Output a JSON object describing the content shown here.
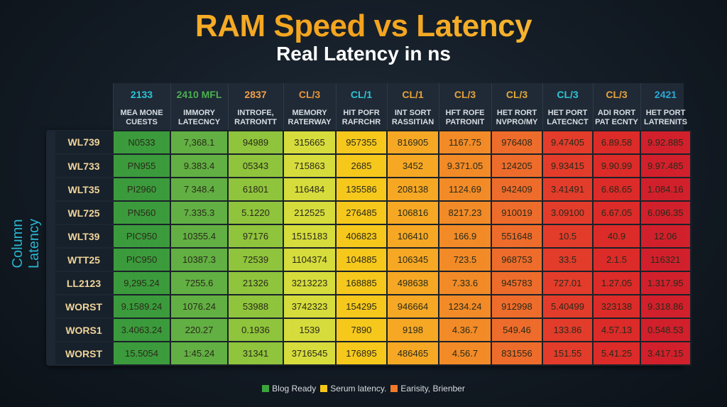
{
  "chart_data": {
    "type": "table",
    "title": "RAM Speed vs Latency",
    "subtitle": "Real Latency in ns",
    "ylabel": "Column Latency",
    "columns": [
      {
        "speed": "2133",
        "label1": "MEA MONE",
        "label2": "CUESTS",
        "color": "#2ec4d6",
        "fill": "#3b9b3c"
      },
      {
        "speed": "2410 MFL",
        "label1": "IMMORY",
        "label2": "LATECNCY",
        "color": "#4caf50",
        "fill": "#62b043"
      },
      {
        "speed": "2837",
        "label1": "INTROFE,",
        "label2": "RATRONTT",
        "color": "#f0a04b",
        "fill": "#8fc43c"
      },
      {
        "speed": "CL/3",
        "label1": "MEMORY",
        "label2": "RATERWAY",
        "color": "#e8963a",
        "fill": "#d6dc3c"
      },
      {
        "speed": "CL/1",
        "label1": "HIT POFR",
        "label2": "RAFRCHR",
        "color": "#2ec4d6",
        "fill": "#f6c81c"
      },
      {
        "speed": "CL/1",
        "label1": "INT SORT",
        "label2": "RASSITIAN",
        "color": "#e8a23a",
        "fill": "#f6a824"
      },
      {
        "speed": "CL/3",
        "label1": "HFT ROFE",
        "label2": "PATRONIT",
        "color": "#e8a23a",
        "fill": "#f28b27"
      },
      {
        "speed": "CL/3",
        "label1": "HET RORT",
        "label2": "NVPRO/MY",
        "color": "#e0a83a",
        "fill": "#ee6c2b"
      },
      {
        "speed": "CL/3",
        "label1": "HET PORT",
        "label2": "LATECNCT",
        "color": "#2ec4d6",
        "fill": "#e33c2b"
      },
      {
        "speed": "CL/3",
        "label1": "ADI RORT",
        "label2": "PAT ECNTY",
        "color": "#e8a23a",
        "fill": "#dc2b29"
      },
      {
        "speed": "2421",
        "label1": "HET PORT",
        "label2": "LATRENITS",
        "color": "#2ea8d6",
        "fill": "#d1202c"
      }
    ],
    "rows": [
      {
        "label": "WL739",
        "values": [
          "N0533",
          "7,368.1",
          "94989",
          "315665",
          "957355",
          "816905",
          "1167.75",
          "976408",
          "9.47405",
          "6.89.58",
          "9.92.885"
        ]
      },
      {
        "label": "WL733",
        "values": [
          "PN955",
          "9.383.4",
          "05343",
          "715863",
          "2685",
          "3452",
          "9.371.05",
          "124205",
          "9.93415",
          "9.90.99",
          "9.97.485"
        ]
      },
      {
        "label": "WLT35",
        "values": [
          "PI2960",
          "7 348.4",
          "61801",
          "116484",
          "135586",
          "208138",
          "1124.69",
          "942409",
          "3.41491",
          "6.68.65",
          "1.084.16"
        ]
      },
      {
        "label": "WL725",
        "values": [
          "PN560",
          "7.335.3",
          "5.1220",
          "212525",
          "276485",
          "106816",
          "8217.23",
          "910019",
          "3.09100",
          "6.67.05",
          "6.096.35"
        ]
      },
      {
        "label": "WLT39",
        "values": [
          "PIC950",
          "10355.4",
          "97176",
          "1515183",
          "406823",
          "106410",
          "166.9",
          "551648",
          "10.5",
          "40.9",
          "12.06"
        ]
      },
      {
        "label": "WTT25",
        "values": [
          "PIC950",
          "10387.3",
          "72539",
          "1104374",
          "104885",
          "106345",
          "723.5",
          "968753",
          "33.5",
          "2.1.5",
          "116321"
        ]
      },
      {
        "label": "LL2123",
        "values": [
          "9,295.24",
          "7255.6",
          "21326",
          "3213223",
          "168885",
          "498638",
          "7.33.6",
          "945783",
          "727.01",
          "1.27.05",
          "1.317.95"
        ]
      },
      {
        "label": "WORST",
        "values": [
          "9.1589.24",
          "1076.24",
          "53988",
          "3742323",
          "154295",
          "946664",
          "1234.24",
          "912998",
          "5.40499",
          "323138",
          "9.318.86"
        ]
      },
      {
        "label": "WORS1",
        "values": [
          "3.4063.24",
          "220.27",
          "0.1936",
          "1539",
          "7890",
          "9198",
          "4.36.7",
          "549.46",
          "133.86",
          "4.57.13",
          "0.548.53"
        ]
      },
      {
        "label": "WORST",
        "values": [
          "15.5054",
          "1:45.24",
          "31341",
          "3716545",
          "176895",
          "486465",
          "4.56.7",
          "831556",
          "151.55",
          "5.41.25",
          "3.417.15"
        ]
      }
    ],
    "legend": [
      {
        "label": "Blog Ready",
        "color": "#3aa53a"
      },
      {
        "label": "Serum latency.",
        "color": "#f5c518"
      },
      {
        "label": "Earisity, Brienber",
        "color": "#f2782a"
      }
    ],
    "legend_position": "bottom"
  }
}
